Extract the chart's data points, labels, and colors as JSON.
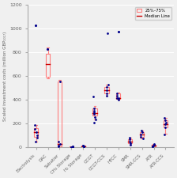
{
  "categories": [
    "Electrolysis",
    "DAC",
    "Sabatier",
    "CH₄ Storage",
    "H₂ Storage",
    "CCGT",
    "CCGT-CCS",
    "HTCC",
    "SMR",
    "SMR-CCS",
    "ATR",
    "ATR-CCS"
  ],
  "medians": [
    125,
    700,
    30,
    3,
    10,
    290,
    480,
    415,
    50,
    110,
    15,
    195
  ],
  "q1": [
    90,
    595,
    8,
    1,
    7,
    265,
    455,
    405,
    35,
    90,
    10,
    165
  ],
  "q3": [
    160,
    790,
    555,
    5,
    14,
    325,
    510,
    455,
    65,
    130,
    20,
    230
  ],
  "whisker_low": [
    45,
    580,
    5,
    1,
    5,
    235,
    435,
    400,
    22,
    72,
    7,
    115
  ],
  "whisker_high": [
    190,
    840,
    565,
    7,
    17,
    345,
    525,
    460,
    78,
    143,
    24,
    248
  ],
  "dots": [
    [
      45,
      80,
      100,
      125,
      155,
      190
    ],
    [],
    [
      5,
      15,
      30,
      45,
      555
    ],
    [
      1,
      2,
      3,
      4,
      5
    ],
    [
      5,
      7,
      10,
      14,
      17
    ],
    [
      210,
      235,
      255,
      280,
      295,
      310,
      325,
      430
    ],
    [
      960,
      435,
      455,
      480,
      505,
      525
    ],
    [
      400,
      415,
      435,
      455,
      415
    ],
    [
      22,
      35,
      50,
      65,
      78
    ],
    [
      72,
      90,
      110,
      130,
      143
    ],
    [
      7,
      10,
      15,
      20,
      24
    ],
    [
      110,
      165,
      195,
      210,
      230,
      248
    ]
  ],
  "single_outliers": [
    [
      1030
    ],
    [
      830
    ],
    [],
    [],
    [],
    [],
    [],
    [
      975
    ],
    [],
    [],
    [],
    []
  ],
  "box_color": "#ff8080",
  "median_color": "#cc0000",
  "dot_color": "#00008b",
  "ylabel": "Scaled investment costs (million GBP₂₀₁₇)",
  "ylim": [
    0,
    1200
  ],
  "yticks": [
    0,
    200,
    400,
    600,
    800,
    1000,
    1200
  ],
  "bg_color": "#f0f0f0",
  "grid_color": "#ffffff"
}
